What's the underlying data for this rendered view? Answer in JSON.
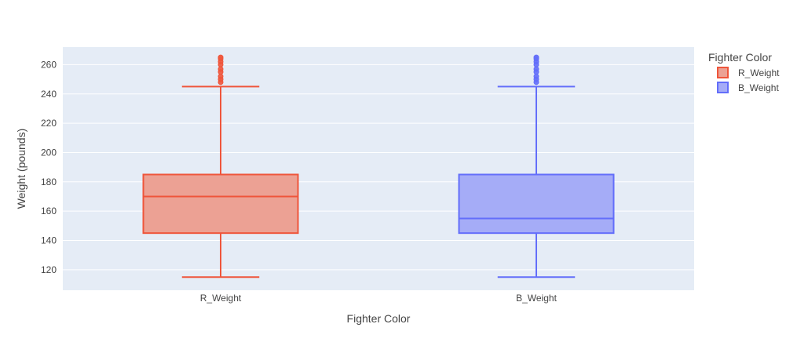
{
  "chart_data": {
    "type": "box",
    "title": "",
    "xlabel": "Fighter Color",
    "ylabel": "Weight (pounds)",
    "ylim": [
      106,
      272
    ],
    "yticks": [
      120,
      140,
      160,
      180,
      200,
      220,
      240,
      260
    ],
    "grid": true,
    "legend": {
      "title": "Fighter Color",
      "placement": "right"
    },
    "categories": [
      "R_Weight",
      "B_Weight"
    ],
    "series": [
      {
        "name": "R_Weight",
        "color": "#ef553b",
        "fill": "#eca194",
        "min": 115,
        "q1": 145,
        "median": 170,
        "q3": 185,
        "max": 245,
        "outliers": [
          248,
          250,
          252,
          255,
          257,
          260,
          262,
          264,
          265
        ]
      },
      {
        "name": "B_Weight",
        "color": "#636efa",
        "fill": "#a5acf7",
        "min": 115,
        "q1": 145,
        "median": 155,
        "q3": 185,
        "max": 245,
        "outliers": [
          248,
          250,
          252,
          255,
          257,
          260,
          262,
          264,
          265
        ]
      }
    ]
  }
}
